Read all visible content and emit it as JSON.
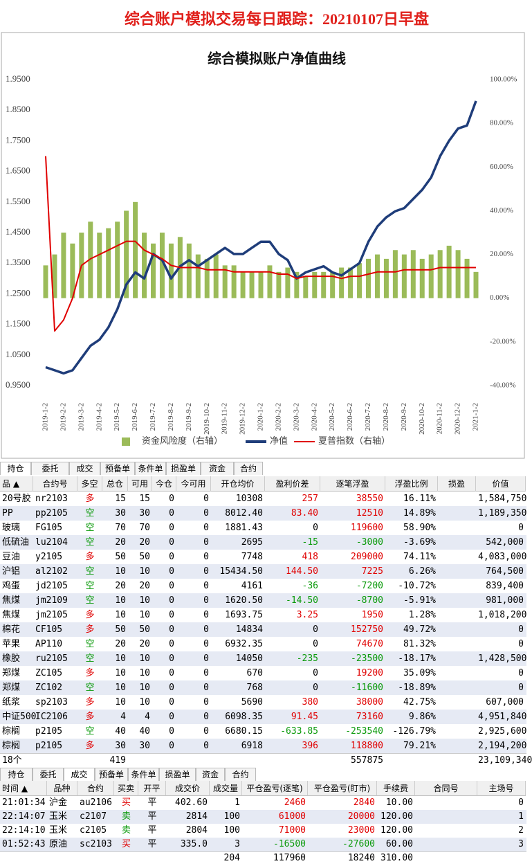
{
  "header": {
    "title": "综合账户模拟交易每日跟踪：20210107日早盘"
  },
  "chart_data": {
    "type": "combo",
    "title": "综合模拟账户净值曲线",
    "categories": [
      "2019-1-2",
      null,
      "2019-2-2",
      null,
      "2019-3-2",
      null,
      "2019-4-2",
      null,
      "2019-5-2",
      null,
      "2019-6-2",
      null,
      "2019-7-2",
      null,
      "2019-8-2",
      null,
      "2019-9-2",
      null,
      "2019-10-2",
      null,
      "2019-11-2",
      null,
      "2019-12-2",
      null,
      "2020-1-2",
      null,
      "2020-2-2",
      null,
      "2020-3-2",
      null,
      "2020-4-2",
      null,
      "2020-5-2",
      null,
      "2020-6-2",
      null,
      "2020-7-2",
      null,
      "2020-8-2",
      null,
      "2020-9-2",
      null,
      "2020-10-2",
      null,
      "2020-11-2",
      null,
      "2020-12-2",
      null,
      "2021-1-2"
    ],
    "series": [
      {
        "name": "资金风险度（右轴）",
        "type": "bar",
        "axis": "y2",
        "color": "#9bbb59",
        "values": [
          15,
          20,
          30,
          25,
          30,
          35,
          30,
          32,
          35,
          40,
          44,
          30,
          25,
          30,
          25,
          28,
          25,
          20,
          18,
          20,
          15,
          15,
          12,
          12,
          12,
          15,
          12,
          14,
          12,
          10,
          12,
          12,
          12,
          14,
          14,
          16,
          18,
          20,
          18,
          22,
          20,
          22,
          18,
          20,
          22,
          24,
          22,
          18,
          12
        ]
      },
      {
        "name": "净值",
        "type": "line",
        "color": "#1f3d7a",
        "values": [
          1.01,
          1.0,
          0.99,
          1.0,
          1.04,
          1.08,
          1.1,
          1.14,
          1.2,
          1.28,
          1.32,
          1.3,
          1.38,
          1.36,
          1.3,
          1.34,
          1.36,
          1.34,
          1.36,
          1.38,
          1.4,
          1.38,
          1.38,
          1.4,
          1.42,
          1.42,
          1.38,
          1.36,
          1.3,
          1.32,
          1.33,
          1.34,
          1.32,
          1.31,
          1.33,
          1.35,
          1.42,
          1.47,
          1.5,
          1.52,
          1.53,
          1.56,
          1.59,
          1.63,
          1.7,
          1.75,
          1.79,
          1.8,
          1.88
        ]
      },
      {
        "name": "夏普指数（右轴）",
        "type": "line",
        "axis": "y2",
        "color": "#e00000",
        "values": [
          65,
          -15,
          -10,
          0,
          15,
          18,
          20,
          22,
          24,
          26,
          26,
          22,
          20,
          18,
          15,
          14,
          14,
          14,
          13,
          13,
          13,
          12,
          12,
          12,
          12,
          12,
          11,
          11,
          9,
          10,
          10,
          10,
          10,
          9,
          10,
          10,
          11,
          12,
          12,
          12,
          13,
          13,
          13,
          13,
          14,
          14,
          14,
          14,
          14
        ]
      }
    ],
    "ylim": [
      0.95,
      1.95
    ],
    "yticks": [
      {
        "value": 0.95,
        "label": "0.9500"
      },
      {
        "value": 1.05,
        "label": "1.0500"
      },
      {
        "value": 1.15,
        "label": "1.1500"
      },
      {
        "value": 1.25,
        "label": "1.2500"
      },
      {
        "value": 1.35,
        "label": "1.3500"
      },
      {
        "value": 1.45,
        "label": "1.4500"
      },
      {
        "value": 1.55,
        "label": "1.5500"
      },
      {
        "value": 1.65,
        "label": "1.6500"
      },
      {
        "value": 1.75,
        "label": "1.7500"
      },
      {
        "value": 1.85,
        "label": "1.8500"
      },
      {
        "value": 1.95,
        "label": "1.9500"
      }
    ],
    "y2lim": [
      -40,
      100
    ],
    "y2ticks": [
      {
        "value": -40,
        "label": "-40.00%"
      },
      {
        "value": -20,
        "label": "-20.00%"
      },
      {
        "value": 0,
        "label": "0.00%"
      },
      {
        "value": 20,
        "label": "20.00%"
      },
      {
        "value": 40,
        "label": "40.00%"
      },
      {
        "value": 60,
        "label": "60.00%"
      },
      {
        "value": 80,
        "label": "80.00%"
      },
      {
        "value": 100,
        "label": "100.00%"
      }
    ],
    "grid": false
  },
  "tabs": [
    "持仓",
    "委托",
    "成交",
    "预备单",
    "条件单",
    "损盈单",
    "资金",
    "合约"
  ],
  "positions": {
    "headers": [
      "品 ▲",
      "合约号",
      "多空",
      "总仓",
      "可用",
      "今仓",
      "今可用",
      "开仓均价",
      "盈利价差",
      "逐笔浮盈",
      "浮盈比例",
      "损盈",
      "价值"
    ],
    "rows": [
      [
        "20号胶",
        "nr2103",
        "多",
        "15",
        "15",
        "0",
        "0",
        "10308",
        "257",
        "38550",
        "16.11%",
        "1,584,750"
      ],
      [
        "PP",
        "pp2105",
        "空",
        "30",
        "30",
        "0",
        "0",
        "8012.40",
        "83.40",
        "12510",
        "14.89%",
        "1,189,350"
      ],
      [
        "玻璃",
        "FG105",
        "空",
        "70",
        "70",
        "0",
        "0",
        "1881.43",
        "0",
        "119600",
        "58.90%",
        "0"
      ],
      [
        "低硫油",
        "lu2104",
        "空",
        "20",
        "20",
        "0",
        "0",
        "2695",
        "-15",
        "-3000",
        "-3.69%",
        "542,000"
      ],
      [
        "豆油",
        "y2105",
        "多",
        "50",
        "50",
        "0",
        "0",
        "7748",
        "418",
        "209000",
        "74.11%",
        "4,083,000"
      ],
      [
        "沪铝",
        "al2102",
        "空",
        "10",
        "10",
        "0",
        "0",
        "15434.50",
        "144.50",
        "7225",
        "6.26%",
        "764,500"
      ],
      [
        "鸡蛋",
        "jd2105",
        "空",
        "20",
        "20",
        "0",
        "0",
        "4161",
        "-36",
        "-7200",
        "-10.72%",
        "839,400"
      ],
      [
        "焦煤",
        "jm2109",
        "空",
        "10",
        "10",
        "0",
        "0",
        "1620.50",
        "-14.50",
        "-8700",
        "-5.91%",
        "981,000"
      ],
      [
        "焦煤",
        "jm2105",
        "多",
        "10",
        "10",
        "0",
        "0",
        "1693.75",
        "3.25",
        "1950",
        "1.28%",
        "1,018,200"
      ],
      [
        "棉花",
        "CF105",
        "多",
        "50",
        "50",
        "0",
        "0",
        "14834",
        "0",
        "152750",
        "49.72%",
        "0"
      ],
      [
        "苹果",
        "AP110",
        "空",
        "20",
        "20",
        "0",
        "0",
        "6932.35",
        "0",
        "74670",
        "81.32%",
        "0"
      ],
      [
        "橡胶",
        "ru2105",
        "空",
        "10",
        "10",
        "0",
        "0",
        "14050",
        "-235",
        "-23500",
        "-18.17%",
        "1,428,500"
      ],
      [
        "郑煤",
        "ZC105",
        "多",
        "10",
        "10",
        "0",
        "0",
        "670",
        "0",
        "19200",
        "35.09%",
        "0"
      ],
      [
        "郑煤",
        "ZC102",
        "空",
        "10",
        "10",
        "0",
        "0",
        "768",
        "0",
        "-11600",
        "-18.89%",
        "0"
      ],
      [
        "纸浆",
        "sp2103",
        "多",
        "10",
        "10",
        "0",
        "0",
        "5690",
        "380",
        "38000",
        "42.75%",
        "607,000"
      ],
      [
        "中证500",
        "IC2106",
        "多",
        "4",
        "4",
        "0",
        "0",
        "6098.35",
        "91.45",
        "73160",
        "9.86%",
        "4,951,840"
      ],
      [
        "棕榈",
        "p2105",
        "空",
        "40",
        "40",
        "0",
        "0",
        "6680.15",
        "-633.85",
        "-253540",
        "-126.79%",
        "2,925,600"
      ],
      [
        "棕榈",
        "p2105",
        "多",
        "30",
        "30",
        "0",
        "0",
        "6918",
        "396",
        "118800",
        "79.21%",
        "2,194,200"
      ]
    ],
    "footer": {
      "count": "18个",
      "total": "419",
      "float_profit": "557875",
      "value": "23,109,340"
    }
  },
  "trade_tabs": [
    "持仓",
    "委托",
    "成交",
    "预备单",
    "条件单",
    "损盈单",
    "资金",
    "合约"
  ],
  "trades": {
    "headers": [
      "时间 ▲",
      "品种",
      "合约",
      "买卖",
      "开平",
      "成交价",
      "成交量",
      "平仓盈亏(逐笔)",
      "平仓盈亏(盯市)",
      "手续费",
      "合同号",
      "主场号"
    ],
    "rows": [
      [
        "21:01:34",
        "沪金",
        "au2106",
        "买",
        "平",
        "402.60",
        "1",
        "2460",
        "2840",
        "10.00",
        "0"
      ],
      [
        "22:14:07",
        "玉米",
        "c2107",
        "卖",
        "平",
        "2814",
        "100",
        "61000",
        "20000",
        "120.00",
        "1"
      ],
      [
        "22:14:10",
        "玉米",
        "c2105",
        "卖",
        "平",
        "2804",
        "100",
        "71000",
        "23000",
        "120.00",
        "2"
      ],
      [
        "01:52:43",
        "原油",
        "sc2103",
        "买",
        "平",
        "335.0",
        "3",
        "-16500",
        "-27600",
        "60.00",
        "3"
      ]
    ],
    "footer": {
      "volume": "204",
      "close_profit": "117960",
      "mtm_profit": "18240",
      "fee": "310.00"
    }
  }
}
